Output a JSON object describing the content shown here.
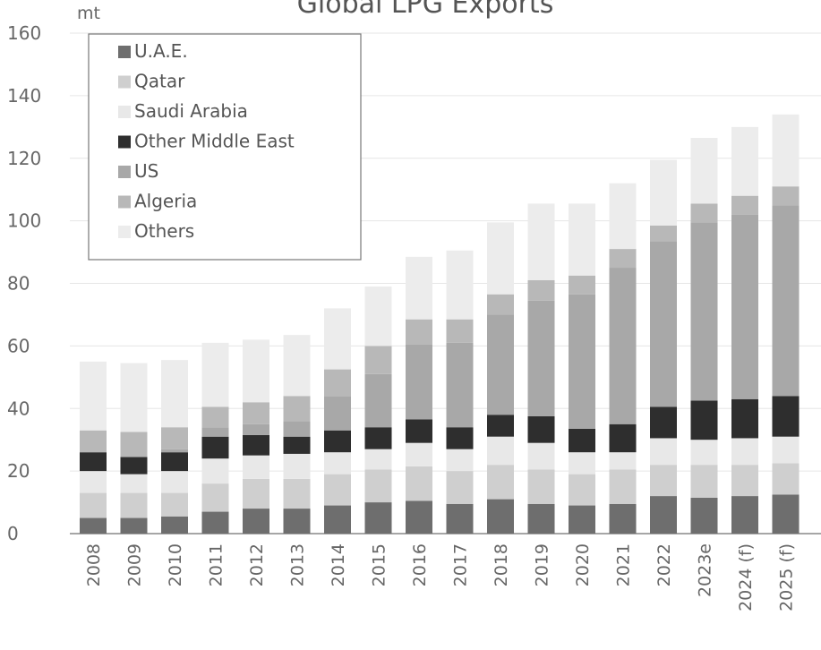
{
  "chart_data": {
    "type": "bar",
    "stacked": true,
    "title": "Global LPG Exports",
    "ylabel": "mt",
    "ylim": [
      0,
      160
    ],
    "yticks": [
      0,
      20,
      40,
      60,
      80,
      100,
      120,
      140,
      160
    ],
    "grid": true,
    "legend_position": "top-left",
    "categories": [
      "2008",
      "2009",
      "2010",
      "2011",
      "2012",
      "2013",
      "2014",
      "2015",
      "2016",
      "2017",
      "2018",
      "2019",
      "2020",
      "2021",
      "2022",
      "2023e",
      "2024 (f)",
      "2025 (f)"
    ],
    "series": [
      {
        "name": "U.A.E.",
        "color": "#6e6e6e",
        "values": [
          5,
          5,
          5.5,
          7,
          8,
          8,
          9,
          10,
          10.5,
          9.5,
          11,
          9.5,
          9,
          9.5,
          12,
          11.5,
          12,
          12.5
        ]
      },
      {
        "name": "Qatar",
        "color": "#cfcfcf",
        "values": [
          8,
          8,
          7.5,
          9,
          9.5,
          9.5,
          10,
          10.5,
          11,
          10.5,
          11,
          11,
          10,
          11,
          10,
          10.5,
          10,
          10
        ]
      },
      {
        "name": "Saudi Arabia",
        "color": "#e8e8e8",
        "values": [
          7,
          6,
          7,
          8,
          7.5,
          8,
          7,
          6.5,
          7.5,
          7,
          9,
          8.5,
          7,
          5.5,
          8.5,
          8,
          8.5,
          8.5
        ]
      },
      {
        "name": "Other Middle East",
        "color": "#2e2e2e",
        "values": [
          6,
          5.5,
          6,
          7,
          6.5,
          5.5,
          7,
          7,
          7.5,
          7,
          7,
          8.5,
          7.5,
          9,
          10,
          12.5,
          12.5,
          13
        ]
      },
      {
        "name": "US",
        "color": "#a8a8a8",
        "values": [
          0,
          0,
          1,
          3,
          3.5,
          5,
          11,
          17,
          24,
          27,
          32,
          37,
          43,
          50,
          53,
          57,
          59,
          61
        ]
      },
      {
        "name": "Algeria",
        "color": "#b8b8b8",
        "values": [
          7,
          8,
          7,
          6.5,
          7,
          8,
          8.5,
          9,
          8,
          7.5,
          6.5,
          6.5,
          6,
          6,
          5,
          6,
          6,
          6
        ]
      },
      {
        "name": "Others",
        "color": "#ececec",
        "values": [
          22,
          22,
          21.5,
          20.5,
          20,
          19.5,
          19.5,
          19,
          20,
          22,
          23,
          24.5,
          23,
          21,
          21,
          21,
          22,
          23
        ]
      }
    ]
  }
}
